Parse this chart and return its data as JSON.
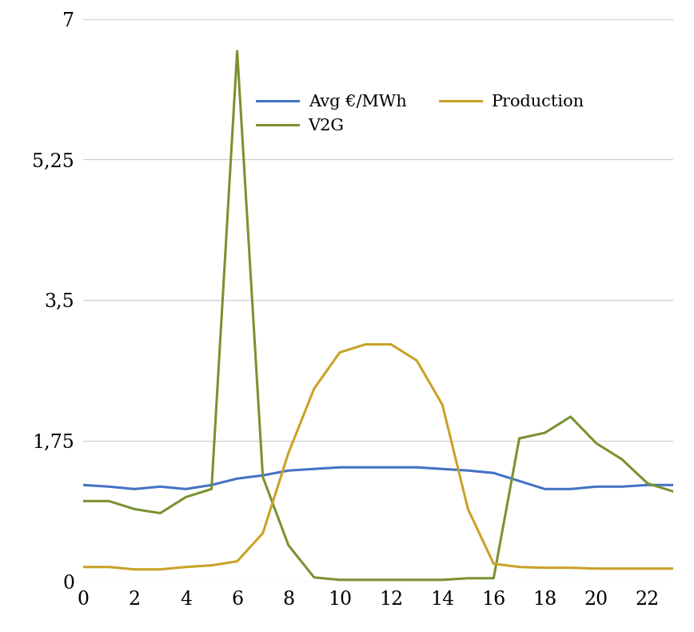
{
  "x": [
    0,
    1,
    2,
    3,
    4,
    5,
    6,
    7,
    8,
    9,
    10,
    11,
    12,
    13,
    14,
    15,
    16,
    17,
    18,
    19,
    20,
    21,
    22,
    23
  ],
  "avg_eur_mwh": [
    1.2,
    1.18,
    1.15,
    1.18,
    1.15,
    1.2,
    1.28,
    1.32,
    1.38,
    1.4,
    1.42,
    1.42,
    1.42,
    1.42,
    1.4,
    1.38,
    1.35,
    1.25,
    1.15,
    1.15,
    1.18,
    1.18,
    1.2,
    1.2
  ],
  "production": [
    0.18,
    0.18,
    0.15,
    0.15,
    0.18,
    0.2,
    0.25,
    0.6,
    1.6,
    2.4,
    2.85,
    2.95,
    2.95,
    2.75,
    2.2,
    0.9,
    0.22,
    0.18,
    0.17,
    0.17,
    0.16,
    0.16,
    0.16,
    0.16
  ],
  "v2g": [
    1.0,
    1.0,
    0.9,
    0.85,
    1.05,
    1.15,
    6.6,
    1.3,
    0.45,
    0.05,
    0.02,
    0.02,
    0.02,
    0.02,
    0.02,
    0.04,
    0.04,
    1.78,
    1.85,
    2.05,
    1.72,
    1.52,
    1.22,
    1.12
  ],
  "avg_color": "#4472c4",
  "production_color": "#c9a227",
  "v2g_color": "#7a9230",
  "bg_color": "#ffffff",
  "yticks": [
    0,
    1.75,
    3.5,
    5.25,
    7
  ],
  "ytick_labels": [
    "0",
    "1,75",
    "3,5",
    "5,25",
    "7"
  ],
  "xticks": [
    0,
    2,
    4,
    6,
    8,
    10,
    12,
    14,
    16,
    18,
    20,
    22
  ],
  "legend_avg": "Avg €/MWh",
  "legend_prod": "Production",
  "legend_v2g": "V2G",
  "ylim": [
    0,
    7
  ],
  "xlim": [
    0,
    23
  ]
}
